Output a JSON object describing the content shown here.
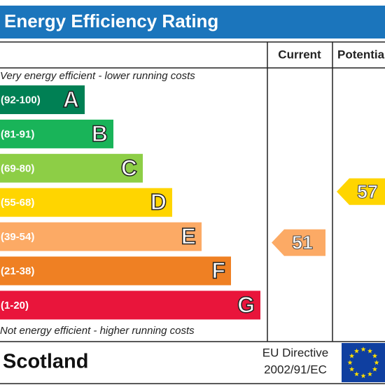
{
  "title": "Energy Efficiency Rating",
  "headers": {
    "current": "Current",
    "potential": "Potential"
  },
  "top_note": "Very energy efficient - lower running costs",
  "bottom_note": "Not energy efficient - higher running costs",
  "bands": [
    {
      "range": "(92-100)",
      "letter": "A",
      "color": "#008054"
    },
    {
      "range": "(81-91)",
      "letter": "B",
      "color": "#19b459"
    },
    {
      "range": "(69-80)",
      "letter": "C",
      "color": "#8dce46"
    },
    {
      "range": "(55-68)",
      "letter": "D",
      "color": "#ffd500"
    },
    {
      "range": "(39-54)",
      "letter": "E",
      "color": "#fcaa65"
    },
    {
      "range": "(21-38)",
      "letter": "F",
      "color": "#ef8023"
    },
    {
      "range": "(1-20)",
      "letter": "G",
      "color": "#e9153b"
    }
  ],
  "current": {
    "value": 51
  },
  "potential": {
    "value": 57
  },
  "footer": {
    "country": "Scotland",
    "directive_line1": "EU Directive",
    "directive_line2": "2002/91/EC"
  }
}
